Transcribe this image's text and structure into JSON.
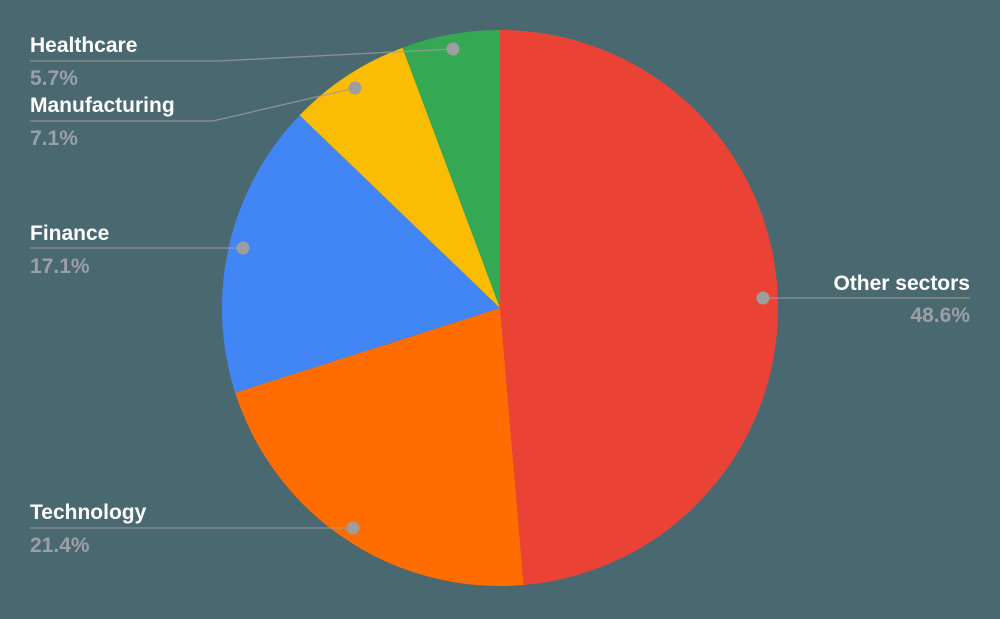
{
  "colors": {
    "background": "#4A6870",
    "label_text": "#FFFFFF",
    "pct_text": "#9AA0A6",
    "leader_line": "#9E9E9E",
    "leader_dot": "#9E9E9E"
  },
  "chart_data": {
    "type": "pie",
    "title": "",
    "start_angle_deg": 0,
    "direction": "clockwise",
    "legend": "none",
    "label_style": "callout-leader-lines",
    "slices": [
      {
        "label": "Other sectors",
        "pct_label": "48.6%",
        "value": 48.6,
        "color": "#EA4335",
        "side": "right"
      },
      {
        "label": "Technology",
        "pct_label": "21.4%",
        "value": 21.4,
        "color": "#FF6D01",
        "side": "left"
      },
      {
        "label": "Finance",
        "pct_label": "17.1%",
        "value": 17.1,
        "color": "#4285F4",
        "side": "left"
      },
      {
        "label": "Manufacturing",
        "pct_label": "7.1%",
        "value": 7.1,
        "color": "#FBBC04",
        "side": "left"
      },
      {
        "label": "Healthcare",
        "pct_label": "5.7%",
        "value": 5.7,
        "color": "#34A853",
        "side": "left"
      }
    ]
  }
}
